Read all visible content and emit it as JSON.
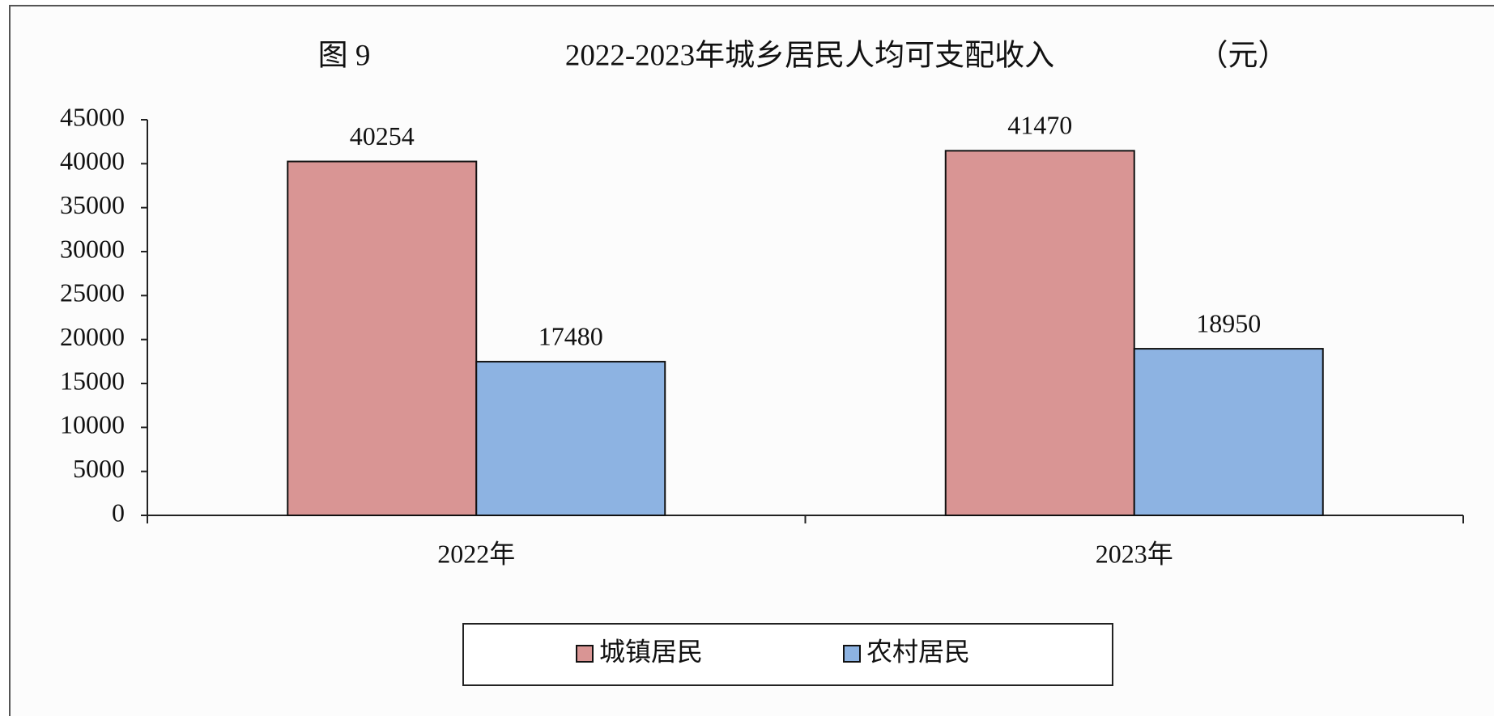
{
  "chart_data": {
    "type": "bar",
    "figure_label": "图 9",
    "title": "2022-2023年城乡居民人均可支配收入",
    "unit": "（元）",
    "categories": [
      "2022年",
      "2023年"
    ],
    "series": [
      {
        "name": "城镇居民",
        "color": "#d99594",
        "values": [
          40254,
          41470
        ]
      },
      {
        "name": "农村居民",
        "color": "#8db3e2",
        "values": [
          17480,
          18950
        ]
      }
    ],
    "ylim": [
      0,
      45000
    ],
    "yticks": [
      0,
      5000,
      10000,
      15000,
      20000,
      25000,
      30000,
      35000,
      40000,
      45000
    ],
    "legend": "bottom"
  }
}
